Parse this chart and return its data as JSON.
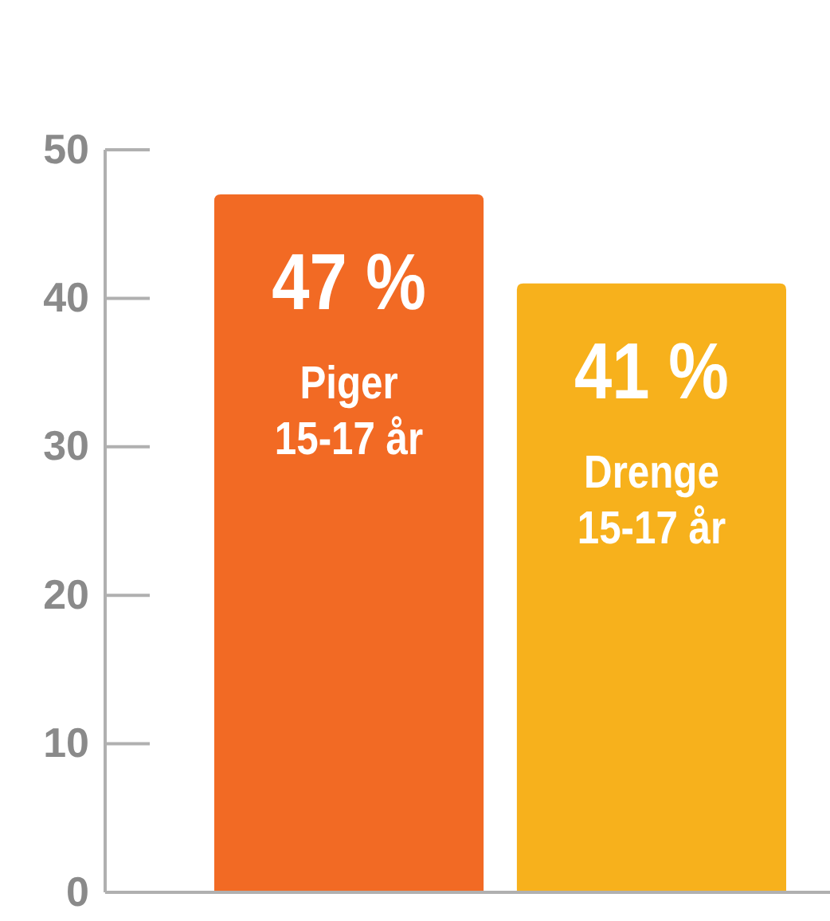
{
  "chart_data": {
    "type": "bar",
    "categories": [
      "Piger 15-17 år",
      "Drenge 15-17 år"
    ],
    "values": [
      47,
      41
    ],
    "colors": [
      "#f26a24",
      "#f7b11c"
    ],
    "value_labels": [
      "47 %",
      "41 %"
    ],
    "ylim": [
      0,
      50
    ],
    "yticks": [
      0,
      10,
      20,
      30,
      40,
      50
    ],
    "grid": false
  }
}
